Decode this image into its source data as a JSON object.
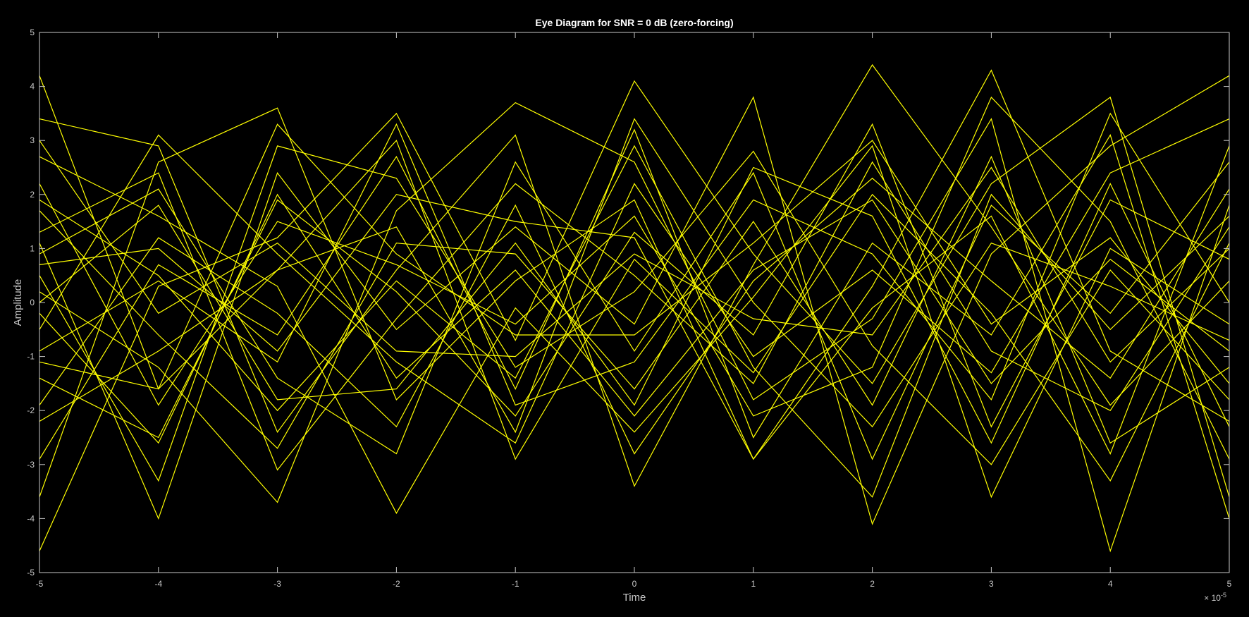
{
  "chart_data": {
    "type": "line",
    "title": "Eye Diagram for SNR = 0 dB (zero-forcing)",
    "xlabel": "Time",
    "ylabel": "Amplitude",
    "x_exponent_label": "× 10",
    "x_exponent_power": "-5",
    "xlim": [
      -5,
      5
    ],
    "ylim": [
      -5,
      5
    ],
    "x_unit_scale": 1e-05,
    "x_ticks": [
      -5,
      -4,
      -3,
      -2,
      -1,
      0,
      1,
      2,
      3,
      4,
      5
    ],
    "y_ticks": [
      -5,
      -4,
      -3,
      -2,
      -1,
      0,
      1,
      2,
      3,
      4,
      5
    ],
    "x_tick_labels": [
      "-5",
      "-4",
      "-3",
      "-2",
      "-1",
      "0",
      "1",
      "2",
      "3",
      "4",
      "5"
    ],
    "y_tick_labels": [
      "-5",
      "-4",
      "-3",
      "-2",
      "-1",
      "0",
      "1",
      "2",
      "3",
      "4",
      "5"
    ],
    "grid": false,
    "legend": "none",
    "background_color": "#000000",
    "axis_color": "#c8c8c8",
    "trace_color": "#ffff00",
    "x": [
      -5,
      -4,
      -3,
      -2,
      -1,
      0,
      1,
      2,
      3,
      4,
      5
    ],
    "series": [
      {
        "values": [
          4.2,
          -1.6,
          0.6,
          3.0,
          -2.9,
          0.8,
          -1.3,
          2.0,
          -0.2,
          -3.3,
          1.1
        ]
      },
      {
        "values": [
          3.4,
          2.9,
          -2.4,
          0.6,
          3.1,
          -3.4,
          0.7,
          4.4,
          1.4,
          -1.9,
          0.4
        ]
      },
      {
        "values": [
          -3.6,
          2.6,
          3.6,
          -1.8,
          0.4,
          1.9,
          -2.9,
          0.3,
          4.3,
          -0.9,
          -2.2
        ]
      },
      {
        "values": [
          -4.6,
          0.3,
          1.2,
          3.5,
          -0.7,
          4.1,
          0.9,
          -1.5,
          2.2,
          3.8,
          -3.6
        ]
      },
      {
        "values": [
          1.1,
          -4.0,
          2.4,
          -0.5,
          1.4,
          -0.4,
          3.8,
          -4.1,
          0.9,
          2.9,
          4.2
        ]
      },
      {
        "values": [
          0.2,
          -1.2,
          -3.7,
          1.7,
          3.7,
          2.6,
          -1.8,
          -0.3,
          3.4,
          -4.6,
          1.8
        ]
      },
      {
        "values": [
          2.7,
          1.6,
          0.3,
          -3.9,
          -0.1,
          -2.4,
          0.1,
          2.9,
          -3.6,
          1.0,
          -0.4
        ]
      },
      {
        "values": [
          -2.9,
          0.7,
          -0.6,
          2.7,
          -1.6,
          3.2,
          -2.5,
          1.1,
          -0.6,
          3.1,
          -4.0
        ]
      },
      {
        "values": [
          0.9,
          2.1,
          -1.4,
          -2.8,
          2.6,
          -0.9,
          2.4,
          -2.9,
          1.8,
          -0.2,
          2.6
        ]
      },
      {
        "values": [
          -1.4,
          -2.5,
          1.9,
          0.2,
          -2.1,
          1.3,
          -0.6,
          3.3,
          -2.3,
          1.9,
          0.8
        ]
      },
      {
        "values": [
          1.7,
          -0.6,
          -2.7,
          1.1,
          0.9,
          -1.6,
          1.5,
          -1.9,
          2.7,
          -2.6,
          -1.2
        ]
      },
      {
        "values": [
          -0.5,
          3.1,
          0.9,
          -1.1,
          -2.6,
          2.2,
          -1.0,
          0.6,
          -1.3,
          2.4,
          3.4
        ]
      },
      {
        "values": [
          0.5,
          -3.3,
          2.9,
          2.3,
          -1.2,
          0.2,
          2.8,
          -0.8,
          -3.0,
          0.6,
          -1.8
        ]
      },
      {
        "values": [
          -1.9,
          1.2,
          -0.2,
          -2.3,
          1.8,
          -2.8,
          0.4,
          2.3,
          0.4,
          -1.4,
          2.1
        ]
      },
      {
        "values": [
          2.2,
          -1.9,
          1.5,
          0.7,
          -0.4,
          1.6,
          -2.1,
          -1.2,
          3.8,
          1.5,
          -2.9
        ]
      },
      {
        "values": [
          -0.9,
          0.4,
          -1.1,
          3.3,
          -1.9,
          -1.1,
          1.9,
          0.9,
          -1.8,
          3.5,
          0.0
        ]
      },
      {
        "values": [
          1.3,
          2.4,
          -3.1,
          -0.3,
          2.2,
          0.5,
          -1.5,
          2.6,
          -0.9,
          -2.0,
          1.4
        ]
      },
      {
        "values": [
          -2.2,
          -0.9,
          0.6,
          1.4,
          -2.4,
          3.4,
          0.0,
          -2.3,
          1.1,
          0.3,
          -0.7
        ]
      },
      {
        "values": [
          0.0,
          1.8,
          -1.8,
          -1.6,
          1.1,
          -1.9,
          2.5,
          1.6,
          -2.6,
          2.2,
          -2.3
        ]
      },
      {
        "values": [
          3.0,
          -0.2,
          1.1,
          -0.9,
          -1.0,
          0.9,
          -0.3,
          -0.6,
          2.5,
          -1.1,
          1.0
        ]
      },
      {
        "values": [
          -1.1,
          -1.6,
          3.3,
          0.9,
          -0.6,
          -0.6,
          1.1,
          3.0,
          -0.4,
          1.2,
          -1.5
        ]
      },
      {
        "values": [
          0.7,
          1.0,
          -0.9,
          2.0,
          1.5,
          1.2,
          -2.9,
          -0.1,
          1.6,
          -2.8,
          2.9
        ]
      },
      {
        "values": [
          -0.2,
          -2.6,
          2.0,
          -1.4,
          0.6,
          -2.1,
          0.6,
          1.9,
          -1.5,
          0.8,
          -0.9
        ]
      },
      {
        "values": [
          1.9,
          0.5,
          -2.0,
          0.4,
          -1.4,
          2.9,
          -1.2,
          -3.6,
          2.0,
          -0.5,
          1.6
        ]
      }
    ]
  }
}
